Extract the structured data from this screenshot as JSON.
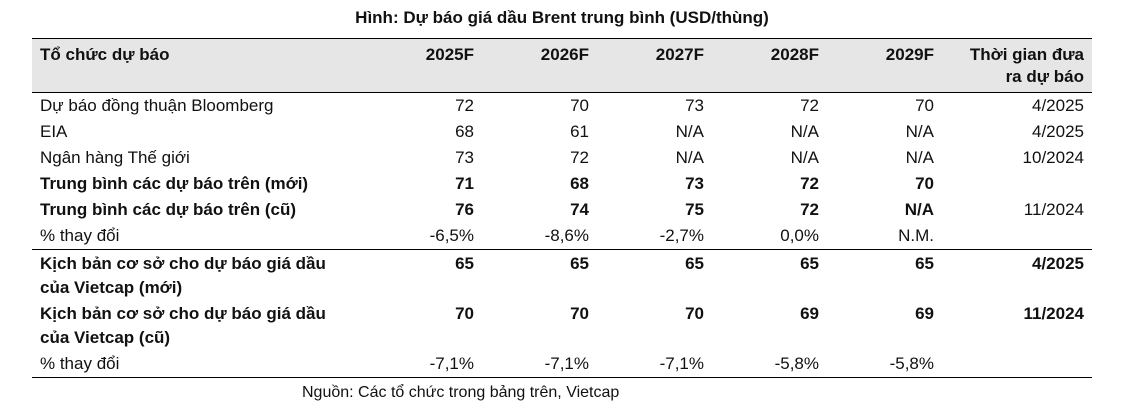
{
  "title": "Hình: Dự báo giá dầu Brent trung bình (USD/thùng)",
  "table": {
    "headers": [
      "Tổ chức dự báo",
      "2025F",
      "2026F",
      "2027F",
      "2028F",
      "2029F",
      "Thời gian đưa ra dự báo"
    ],
    "rows": [
      {
        "label": "Dự báo đồng thuận Bloomberg",
        "values": [
          "72",
          "70",
          "73",
          "72",
          "70"
        ],
        "date": "4/2025",
        "bold": false,
        "group_start": false
      },
      {
        "label": "EIA",
        "values": [
          "68",
          "61",
          "N/A",
          "N/A",
          "N/A"
        ],
        "date": "4/2025",
        "bold": false,
        "group_start": false
      },
      {
        "label": "Ngân hàng Thế giới",
        "values": [
          "73",
          "72",
          "N/A",
          "N/A",
          "N/A"
        ],
        "date": "10/2024",
        "bold": false,
        "group_start": false
      },
      {
        "label": "Trung bình các dự báo trên (mới)",
        "values": [
          "71",
          "68",
          "73",
          "72",
          "70"
        ],
        "date": "",
        "bold": true,
        "group_start": false
      },
      {
        "label": "Trung bình các dự báo trên (cũ)",
        "values": [
          "76",
          "74",
          "75",
          "72",
          "N/A"
        ],
        "date": "11/2024",
        "bold": true,
        "bold_date": false,
        "group_start": false
      },
      {
        "label": "% thay đổi",
        "values": [
          "-6,5%",
          "-8,6%",
          "-2,7%",
          "0,0%",
          "N.M."
        ],
        "date": "",
        "bold": false,
        "group_start": false
      },
      {
        "label": "Kịch bản cơ sở cho dự báo giá dầu của Vietcap (mới)",
        "values": [
          "65",
          "65",
          "65",
          "65",
          "65"
        ],
        "date": "4/2025",
        "bold": true,
        "group_start": true
      },
      {
        "label": "Kịch bản cơ sở cho dự báo giá dầu của Vietcap (cũ)",
        "values": [
          "70",
          "70",
          "70",
          "69",
          "69"
        ],
        "date": "11/2024",
        "bold": true,
        "group_start": false
      },
      {
        "label": "% thay đổi",
        "values": [
          "-7,1%",
          "-7,1%",
          "-7,1%",
          "-5,8%",
          "-5,8%"
        ],
        "date": "",
        "bold": false,
        "group_start": false
      }
    ]
  },
  "source": "Nguồn: Các tổ chức trong bảng trên, Vietcap"
}
